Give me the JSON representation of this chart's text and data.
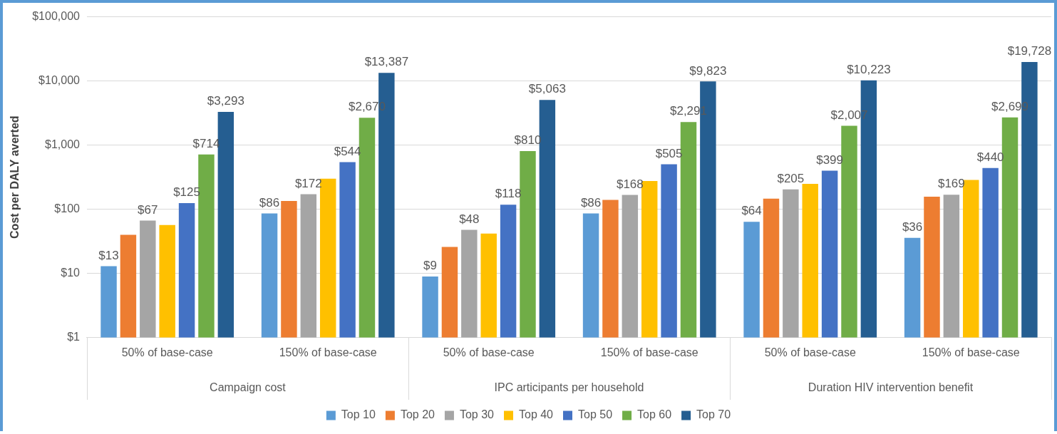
{
  "chart_data": {
    "type": "bar",
    "ylabel": "Cost per DALY averted",
    "categories": [
      "50% of base-case",
      "150% of base-case",
      "50% of base-case",
      "150% of base-case",
      "50% of base-case",
      "150% of base-case"
    ],
    "annotations": [
      "Campaign cost",
      "IPC articipants per household",
      "Duration HIV intervention benefit"
    ],
    "series": [
      {
        "name": "Top 10",
        "color": "#5b9bd5",
        "values": [
          13,
          86,
          9,
          86,
          64,
          36
        ],
        "value_labels": [
          "$13",
          "$86",
          "$9",
          "$86",
          "$64",
          "$36"
        ]
      },
      {
        "name": "Top 20",
        "color": "#ed7d31",
        "values": [
          40,
          135,
          26,
          140,
          147,
          157
        ]
      },
      {
        "name": "Top 30",
        "color": "#a5a5a5",
        "values": [
          67,
          172,
          48,
          168,
          205,
          169
        ],
        "value_labels": [
          "$67",
          "$172",
          "$48",
          "$168",
          "$205",
          "$169"
        ]
      },
      {
        "name": "Top 40",
        "color": "#ffc000",
        "values": [
          57,
          300,
          42,
          277,
          250,
          287
        ]
      },
      {
        "name": "Top 50",
        "color": "#4472c4",
        "values": [
          125,
          544,
          118,
          505,
          399,
          440
        ],
        "value_labels": [
          "$125",
          "$544",
          "$118",
          "$505",
          "$399",
          "$440"
        ]
      },
      {
        "name": "Top 60",
        "color": "#70ad47",
        "values": [
          714,
          2670,
          810,
          2291,
          2007,
          2699
        ],
        "value_labels": [
          "$714",
          "$2,670",
          "$810",
          "$2,291",
          "$2,007",
          "$2,699"
        ]
      },
      {
        "name": "Top 70",
        "color": "#255e91",
        "values": [
          3293,
          13387,
          5063,
          9823,
          10223,
          19728
        ],
        "value_labels": [
          "$3,293",
          "$13,387",
          "$5,063",
          "$9,823",
          "$10,223",
          "$19,728"
        ]
      }
    ],
    "ylim": [
      1,
      100000
    ],
    "yticks": [
      {
        "value": 1,
        "label": "$1"
      },
      {
        "value": 10,
        "label": "$10"
      },
      {
        "value": 100,
        "label": "$100"
      },
      {
        "value": 1000,
        "label": "$1,000"
      },
      {
        "value": 10000,
        "label": "$10,000"
      },
      {
        "value": 100000,
        "label": "$100,000"
      }
    ],
    "log": true,
    "grid": "y",
    "legend": "bottom"
  }
}
